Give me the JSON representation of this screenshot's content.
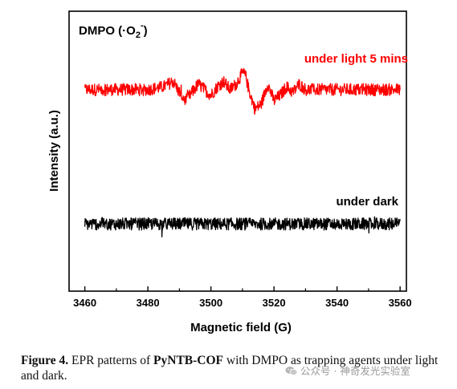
{
  "chart_data": {
    "type": "line",
    "title": "DMPO (·O",
    "title_sub": "2",
    "title_sup": "-",
    "title_close": ")",
    "xlabel": "Magnetic field (G)",
    "ylabel": "Intensity (a.u.)",
    "xlim": [
      3455,
      3562
    ],
    "ylim": [
      0,
      1
    ],
    "x_ticks": [
      3460,
      3480,
      3500,
      3520,
      3540,
      3560
    ],
    "grid": false,
    "y_tick_labels": false,
    "series": [
      {
        "name": "under light 5 mins",
        "color": "#ff0000",
        "baseline": 0.72,
        "noise": 0.022,
        "x": [
          3460,
          3470,
          3480,
          3485,
          3488,
          3490,
          3492,
          3494,
          3496,
          3498,
          3500,
          3502,
          3504,
          3506,
          3508,
          3510,
          3511,
          3512,
          3514,
          3516,
          3518,
          3520,
          3522,
          3524,
          3526,
          3528,
          3530,
          3540,
          3550,
          3560
        ],
        "y": [
          0.72,
          0.72,
          0.72,
          0.73,
          0.75,
          0.71,
          0.68,
          0.71,
          0.74,
          0.72,
          0.7,
          0.73,
          0.75,
          0.72,
          0.74,
          0.78,
          0.77,
          0.72,
          0.65,
          0.67,
          0.74,
          0.68,
          0.7,
          0.73,
          0.71,
          0.74,
          0.72,
          0.72,
          0.72,
          0.72
        ]
      },
      {
        "name": "under dark",
        "color": "#000000",
        "baseline": 0.24,
        "noise": 0.022,
        "x": [
          3460,
          3560
        ],
        "y": [
          0.24,
          0.24
        ]
      }
    ]
  },
  "caption": {
    "label": "Figure 4.",
    "text1": " EPR patterns of ",
    "bold": "PyNTB-COF",
    "text2": " with DMPO as trapping agents under light and dark."
  },
  "watermark": {
    "icon": "wechat-icon",
    "text": "公众号 · 神奇发光实验室"
  }
}
